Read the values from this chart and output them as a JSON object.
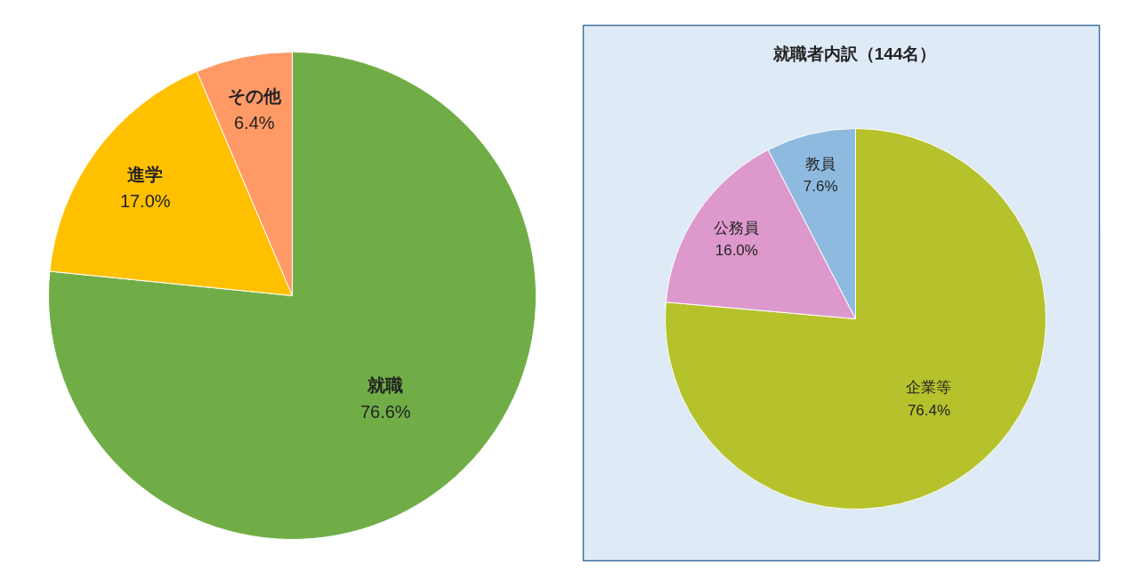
{
  "chart_data": [
    {
      "type": "pie",
      "categories": [
        "就職",
        "進学",
        "その他"
      ],
      "values": [
        76.6,
        17.0,
        6.4
      ],
      "colors": [
        "#70ad47",
        "#ffc000",
        "#ff9966"
      ],
      "value_labels": [
        "76.6%",
        "17.0%",
        "6.4%"
      ]
    },
    {
      "type": "pie",
      "title": "就職者内訳（144名）",
      "categories": [
        "企業等",
        "公務員",
        "教員"
      ],
      "values": [
        76.4,
        16.0,
        7.6
      ],
      "colors": [
        "#b5c22c",
        "#dd99cc",
        "#8fbae0"
      ],
      "value_labels": [
        "76.4%",
        "16.0%",
        "7.6%"
      ]
    }
  ]
}
